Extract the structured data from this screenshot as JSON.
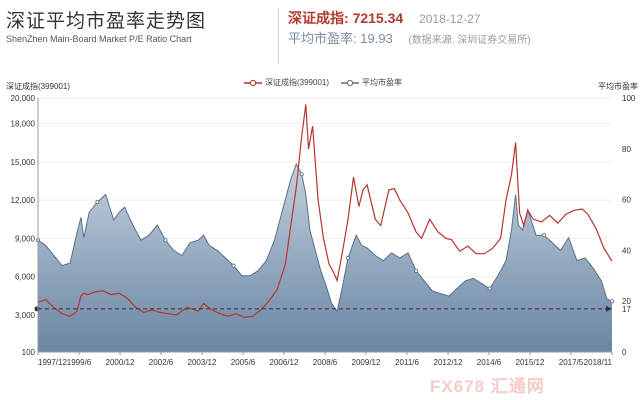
{
  "header": {
    "title": "深证平均市盈率走势图",
    "subtitle": "ShenZhen Main-Board Market P/E Ratio Chart",
    "index_label": "深证成指:",
    "index_value": "7215.34",
    "date": "2018-12-27",
    "pe_label": "平均市盈率:",
    "pe_value": "19.93",
    "source": "(数据来源: 深圳证券交易所)"
  },
  "legend": {
    "series1": "深证成指(399001)",
    "series2": "平均市盈率"
  },
  "axes": {
    "left_label": "深证成指(399001)",
    "right_label": "平均市盈率"
  },
  "watermark": "FX678 汇通网",
  "colors": {
    "index_line": "#b8342c",
    "pe_line": "#5a6f88",
    "pe_fill_top": "#b9c9d8",
    "pe_fill_bottom": "#6f89a6"
  },
  "chart_data": {
    "type": "line",
    "x_ticks": [
      "1997/12",
      "1999/6",
      "2000/12",
      "2002/6",
      "2003/12",
      "2005/6",
      "2006/12",
      "2008/6",
      "2009/12",
      "2011/6",
      "2012/12",
      "2014/6",
      "2015/12",
      "2017/5",
      "2018/11"
    ],
    "y_left": {
      "min": 100,
      "max": 20000,
      "ticks": [
        100,
        3000,
        6000,
        9000,
        12000,
        15000,
        18000,
        20000
      ]
    },
    "y_right": {
      "min": 0,
      "max": 100,
      "ticks": [
        0,
        20,
        40,
        60,
        80,
        100
      ]
    },
    "annotations": [
      {
        "axis": "right",
        "value": 17,
        "label": "17",
        "style": "dashed"
      }
    ],
    "series": [
      {
        "name": "深证成指(399001)",
        "axis": "left",
        "x": [
          1997.92,
          1998.2,
          1998.5,
          1998.8,
          1999.1,
          1999.35,
          1999.5,
          1999.6,
          1999.75,
          2000.0,
          2000.3,
          2000.6,
          2000.9,
          2001.2,
          2001.5,
          2001.8,
          2002.1,
          2002.4,
          2002.7,
          2003.0,
          2003.4,
          2003.8,
          2004.0,
          2004.3,
          2004.6,
          2004.9,
          2005.2,
          2005.5,
          2005.8,
          2006.1,
          2006.4,
          2006.7,
          2007.0,
          2007.2,
          2007.4,
          2007.6,
          2007.75,
          2007.85,
          2008.0,
          2008.2,
          2008.4,
          2008.6,
          2008.8,
          2008.9,
          2009.1,
          2009.3,
          2009.5,
          2009.7,
          2009.85,
          2010.0,
          2010.3,
          2010.5,
          2010.8,
          2011.0,
          2011.2,
          2011.5,
          2011.8,
          2012.0,
          2012.3,
          2012.6,
          2012.9,
          2013.1,
          2013.4,
          2013.7,
          2014.0,
          2014.3,
          2014.6,
          2014.9,
          2015.1,
          2015.3,
          2015.45,
          2015.6,
          2015.75,
          2015.9,
          2016.1,
          2016.4,
          2016.7,
          2017.0,
          2017.3,
          2017.6,
          2017.9,
          2018.1,
          2018.4,
          2018.7,
          2018.99
        ],
        "y": [
          4000,
          4200,
          3600,
          3100,
          2900,
          3300,
          4500,
          4700,
          4600,
          4800,
          4900,
          4600,
          4700,
          4300,
          3600,
          3200,
          3400,
          3200,
          3100,
          3000,
          3600,
          3300,
          3900,
          3400,
          3100,
          2900,
          3100,
          2800,
          2900,
          3400,
          4100,
          5000,
          7000,
          10000,
          13000,
          17000,
          19500,
          16000,
          17800,
          12000,
          9000,
          7000,
          6200,
          5700,
          8000,
          10500,
          13800,
          11500,
          12800,
          13200,
          10500,
          10000,
          12800,
          12900,
          12000,
          11000,
          9500,
          9000,
          10500,
          9500,
          9000,
          8900,
          8000,
          8400,
          7800,
          7800,
          8200,
          9000,
          12000,
          14000,
          16500,
          11000,
          10000,
          11200,
          10500,
          10300,
          10800,
          10200,
          10900,
          11200,
          11300,
          10900,
          9800,
          8200,
          7215
        ]
      },
      {
        "name": "平均市盈率",
        "axis": "right",
        "x": [
          1997.92,
          1998.2,
          1998.5,
          1998.8,
          1999.1,
          1999.35,
          1999.5,
          1999.6,
          1999.8,
          2000.1,
          2000.4,
          2000.7,
          2000.9,
          2001.1,
          2001.4,
          2001.7,
          2002.0,
          2002.3,
          2002.6,
          2002.9,
          2003.2,
          2003.5,
          2003.8,
          2004.0,
          2004.2,
          2004.5,
          2004.8,
          2005.1,
          2005.4,
          2005.7,
          2006.0,
          2006.3,
          2006.6,
          2006.9,
          2007.2,
          2007.4,
          2007.6,
          2007.75,
          2007.9,
          2008.1,
          2008.3,
          2008.5,
          2008.7,
          2008.9,
          2009.1,
          2009.3,
          2009.6,
          2009.8,
          2010.0,
          2010.3,
          2010.6,
          2010.9,
          2011.2,
          2011.5,
          2011.8,
          2012.1,
          2012.4,
          2012.7,
          2013.0,
          2013.3,
          2013.6,
          2013.9,
          2014.2,
          2014.5,
          2014.8,
          2015.1,
          2015.3,
          2015.45,
          2015.55,
          2015.7,
          2015.9,
          2016.2,
          2016.5,
          2016.8,
          2017.1,
          2017.4,
          2017.7,
          2018.0,
          2018.3,
          2018.6,
          2018.8,
          2018.99
        ],
        "y": [
          44,
          42,
          38,
          34,
          35,
          47,
          53,
          45,
          55,
          59,
          62,
          52,
          55,
          57,
          50,
          44,
          46,
          50,
          44,
          40,
          38,
          43,
          44,
          46,
          42,
          40,
          37,
          34,
          30,
          30,
          32,
          36,
          44,
          56,
          68,
          74,
          70,
          62,
          48,
          40,
          32,
          26,
          19,
          16,
          26,
          37,
          46,
          42,
          41,
          38,
          36,
          39,
          37,
          39,
          32,
          28,
          24,
          23,
          22,
          25,
          28,
          29,
          27,
          25,
          30,
          36,
          48,
          62,
          50,
          48,
          56,
          46,
          46,
          43,
          40,
          45,
          36,
          37,
          33,
          28,
          21,
          19.93
        ]
      }
    ]
  }
}
